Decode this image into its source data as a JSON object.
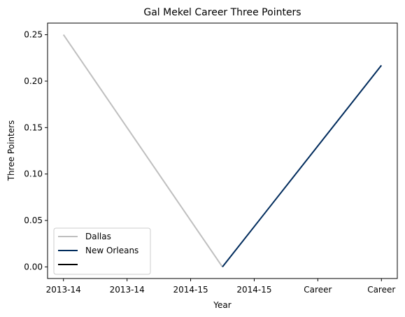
{
  "chart_data": {
    "type": "line",
    "title": "Gal Mekel Career Three Pointers",
    "xlabel": "Year",
    "ylabel": "Three Pointers",
    "x_tick_labels": [
      "2013-14",
      "2013-14",
      "2014-15",
      "2014-15",
      "Career",
      "Career"
    ],
    "y_ticks": [
      0.0,
      0.05,
      0.1,
      0.15,
      0.2,
      0.25
    ],
    "y_tick_labels": [
      "0.00",
      "0.05",
      "0.10",
      "0.15",
      "0.20",
      "0.25"
    ],
    "xlim": [
      -0.25,
      5.25
    ],
    "ylim": [
      -0.0125,
      0.2625
    ],
    "series": [
      {
        "name": "Dallas",
        "color": "#bfbfbf",
        "points": [
          [
            0,
            0.25
          ],
          [
            2.5,
            0.0
          ]
        ]
      },
      {
        "name": "New Orleans",
        "color": "#002b5c",
        "points": [
          [
            2.5,
            0.0
          ],
          [
            5,
            0.217
          ]
        ]
      },
      {
        "name": "",
        "color": "#000000",
        "points": []
      }
    ],
    "legend": {
      "placement": "lower-left"
    },
    "grid": false
  }
}
